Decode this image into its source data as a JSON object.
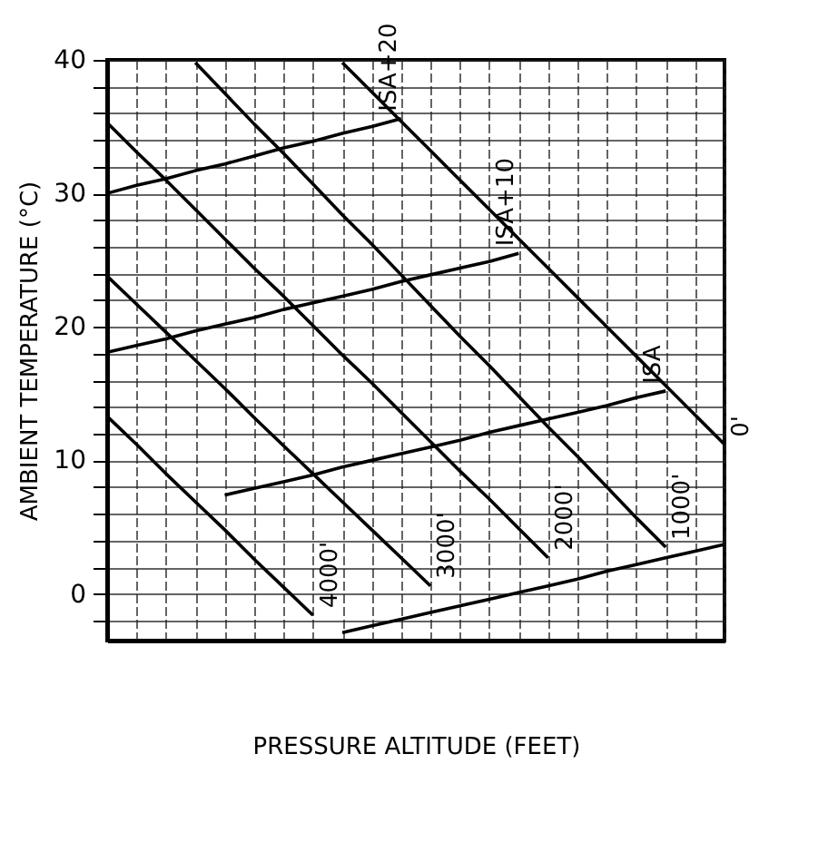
{
  "chart_data": {
    "type": "line",
    "xlabel": "PRESSURE ALTITUDE (FEET)",
    "ylabel": "AMBIENT TEMPERATURE (°C)",
    "categories": [
      null,
      null,
      null,
      null,
      null,
      null,
      null,
      null,
      null,
      null,
      null,
      null,
      null,
      null,
      null,
      null,
      null,
      null,
      null,
      null,
      null,
      null
    ],
    "ylim": [
      -3.5,
      40
    ],
    "yticks": [
      {
        "value": -2,
        "label": null
      },
      0,
      {
        "value": 2,
        "label": null
      },
      {
        "value": 4,
        "label": null
      },
      {
        "value": 6,
        "label": null
      },
      {
        "value": 8,
        "label": null
      },
      10,
      {
        "value": 12,
        "label": null
      },
      {
        "value": 14,
        "label": null
      },
      {
        "value": 16,
        "label": null
      },
      {
        "value": 18,
        "label": null
      },
      20,
      {
        "value": 22,
        "label": null
      },
      {
        "value": 24,
        "label": null
      },
      {
        "value": 26,
        "label": null
      },
      {
        "value": 28,
        "label": null
      },
      30,
      {
        "value": 32,
        "label": null
      },
      {
        "value": 34,
        "label": null
      },
      {
        "value": 36,
        "label": null
      },
      {
        "value": 38,
        "label": null
      },
      40
    ],
    "grid": true,
    "tick_labels": "y",
    "marker": "none",
    "line_style": "solid",
    "series": [
      {
        "name": "ISA+20",
        "color": "#000000",
        "values": [
          30,
          30.6,
          31.1,
          31.7,
          32.2,
          32.8,
          33.4,
          33.9,
          34.5,
          35.0,
          35.6,
          null,
          null,
          null,
          null,
          null,
          null,
          null,
          null,
          null,
          null,
          null
        ]
      },
      {
        "name": "ISA+10",
        "color": "#000000",
        "values": [
          18.1,
          18.6,
          19.1,
          19.7,
          20.2,
          20.7,
          21.3,
          21.8,
          22.3,
          22.8,
          23.4,
          23.9,
          24.4,
          24.9,
          25.5,
          null,
          null,
          null,
          null,
          null,
          null,
          null
        ]
      },
      {
        "name": "ISA",
        "color": "#000000",
        "values": [
          null,
          null,
          null,
          null,
          7.4,
          7.9,
          8.4,
          8.9,
          9.5,
          10.0,
          10.5,
          11.0,
          11.5,
          12.1,
          12.6,
          13.1,
          13.6,
          14.1,
          14.7,
          15.2,
          null,
          null
        ]
      },
      {
        "color": "#000000",
        "values": [
          null,
          null,
          null,
          null,
          null,
          null,
          null,
          null,
          -2.9,
          -2.4,
          -1.9,
          -1.4,
          -0.9,
          -0.4,
          0.1,
          0.6,
          1.1,
          1.7,
          2.2,
          2.7,
          3.2,
          3.7
        ]
      },
      {
        "name": "0'",
        "color": "#000000",
        "values": [
          null,
          null,
          null,
          null,
          null,
          null,
          null,
          null,
          39.8,
          37.6,
          35.4,
          33.2,
          31.0,
          28.8,
          26.6,
          24.4,
          22.2,
          20.0,
          17.8,
          15.6,
          13.4,
          11.2
        ]
      },
      {
        "name": "1000'",
        "color": "#000000",
        "values": [
          null,
          null,
          null,
          39.8,
          37.5,
          35.2,
          33.0,
          30.7,
          28.4,
          26.2,
          23.9,
          21.6,
          19.3,
          17.1,
          14.8,
          12.5,
          10.3,
          8.0,
          5.7,
          3.5,
          null,
          null
        ]
      },
      {
        "name": "2000'",
        "color": "#000000",
        "values": [
          35.3,
          33.1,
          31.0,
          28.8,
          26.6,
          24.4,
          22.3,
          20.1,
          17.9,
          15.8,
          13.6,
          11.4,
          9.2,
          7.1,
          4.9,
          2.7,
          null,
          null,
          null,
          null,
          null,
          null
        ]
      },
      {
        "name": "3000'",
        "color": "#000000",
        "values": [
          23.8,
          21.7,
          19.6,
          17.5,
          15.4,
          13.2,
          11.1,
          9.0,
          6.9,
          4.8,
          2.7,
          0.6,
          null,
          null,
          null,
          null,
          null,
          null,
          null,
          null,
          null,
          null
        ]
      },
      {
        "name": "4000'",
        "color": "#000000",
        "values": [
          13.3,
          11.2,
          9.0,
          6.9,
          4.8,
          2.6,
          0.5,
          -1.6,
          null,
          null,
          null,
          null,
          null,
          null,
          null,
          null,
          null,
          null,
          null,
          null,
          null,
          null
        ]
      }
    ]
  }
}
